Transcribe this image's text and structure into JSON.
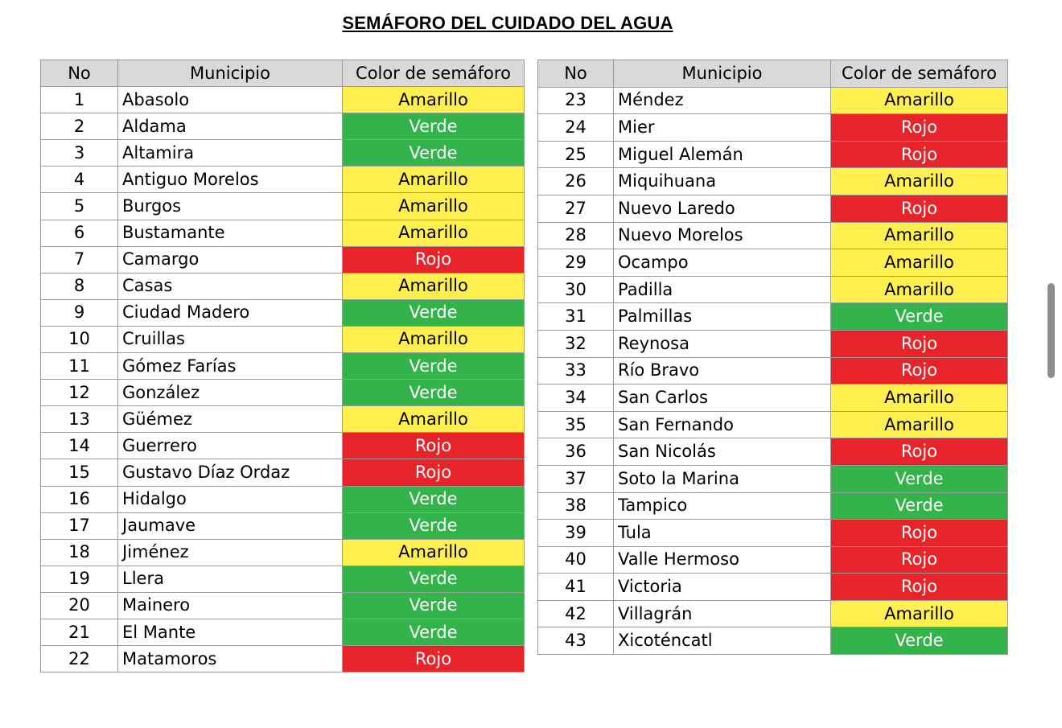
{
  "title": "SEMÁFORO DEL CUIDADO DEL AGUA",
  "headers": {
    "no": "No",
    "municipio": "Municipio",
    "color": "Color de semáforo"
  },
  "colors": {
    "Amarillo": "#fff04f",
    "Verde": "#33b44a",
    "Rojo": "#e8232a"
  },
  "left_rows": [
    {
      "no": "1",
      "municipio": "Abasolo",
      "color": "Amarillo"
    },
    {
      "no": "2",
      "municipio": "Aldama",
      "color": "Verde"
    },
    {
      "no": "3",
      "municipio": "Altamira",
      "color": "Verde"
    },
    {
      "no": "4",
      "municipio": "Antiguo Morelos",
      "color": "Amarillo"
    },
    {
      "no": "5",
      "municipio": "Burgos",
      "color": "Amarillo"
    },
    {
      "no": "6",
      "municipio": "Bustamante",
      "color": "Amarillo"
    },
    {
      "no": "7",
      "municipio": "Camargo",
      "color": "Rojo"
    },
    {
      "no": "8",
      "municipio": "Casas",
      "color": "Amarillo"
    },
    {
      "no": "9",
      "municipio": "Ciudad Madero",
      "color": "Verde"
    },
    {
      "no": "10",
      "municipio": "Cruillas",
      "color": "Amarillo"
    },
    {
      "no": "11",
      "municipio": "Gómez Farías",
      "color": "Verde"
    },
    {
      "no": "12",
      "municipio": "González",
      "color": "Verde"
    },
    {
      "no": "13",
      "municipio": "Güémez",
      "color": "Amarillo"
    },
    {
      "no": "14",
      "municipio": "Guerrero",
      "color": "Rojo"
    },
    {
      "no": "15",
      "municipio": "Gustavo Díaz Ordaz",
      "color": "Rojo"
    },
    {
      "no": "16",
      "municipio": "Hidalgo",
      "color": "Verde"
    },
    {
      "no": "17",
      "municipio": "Jaumave",
      "color": "Verde"
    },
    {
      "no": "18",
      "municipio": "Jiménez",
      "color": "Amarillo"
    },
    {
      "no": "19",
      "municipio": "Llera",
      "color": "Verde"
    },
    {
      "no": "20",
      "municipio": "Mainero",
      "color": "Verde"
    },
    {
      "no": "21",
      "municipio": "El Mante",
      "color": "Verde"
    },
    {
      "no": "22",
      "municipio": "Matamoros",
      "color": "Rojo"
    }
  ],
  "right_rows": [
    {
      "no": "23",
      "municipio": "Méndez",
      "color": "Amarillo"
    },
    {
      "no": "24",
      "municipio": "Mier",
      "color": "Rojo"
    },
    {
      "no": "25",
      "municipio": "Miguel Alemán",
      "color": "Rojo"
    },
    {
      "no": "26",
      "municipio": "Miquihuana",
      "color": "Amarillo"
    },
    {
      "no": "27",
      "municipio": "Nuevo Laredo",
      "color": "Rojo"
    },
    {
      "no": "28",
      "municipio": "Nuevo Morelos",
      "color": "Amarillo"
    },
    {
      "no": "29",
      "municipio": "Ocampo",
      "color": "Amarillo"
    },
    {
      "no": "30",
      "municipio": "Padilla",
      "color": "Amarillo"
    },
    {
      "no": "31",
      "municipio": "Palmillas",
      "color": "Verde"
    },
    {
      "no": "32",
      "municipio": "Reynosa",
      "color": "Rojo"
    },
    {
      "no": "33",
      "municipio": "Río Bravo",
      "color": "Rojo"
    },
    {
      "no": "34",
      "municipio": "San Carlos",
      "color": "Amarillo"
    },
    {
      "no": "35",
      "municipio": "San Fernando",
      "color": "Amarillo"
    },
    {
      "no": "36",
      "municipio": "San Nicolás",
      "color": "Rojo"
    },
    {
      "no": "37",
      "municipio": "Soto la Marina",
      "color": "Verde"
    },
    {
      "no": "38",
      "municipio": "Tampico",
      "color": "Verde"
    },
    {
      "no": "39",
      "municipio": "Tula",
      "color": "Rojo"
    },
    {
      "no": "40",
      "municipio": "Valle Hermoso",
      "color": "Rojo"
    },
    {
      "no": "41",
      "municipio": "Victoria",
      "color": "Rojo"
    },
    {
      "no": "42",
      "municipio": "Villagrán",
      "color": "Amarillo"
    },
    {
      "no": "43",
      "municipio": "Xicoténcatl",
      "color": "Verde"
    }
  ]
}
